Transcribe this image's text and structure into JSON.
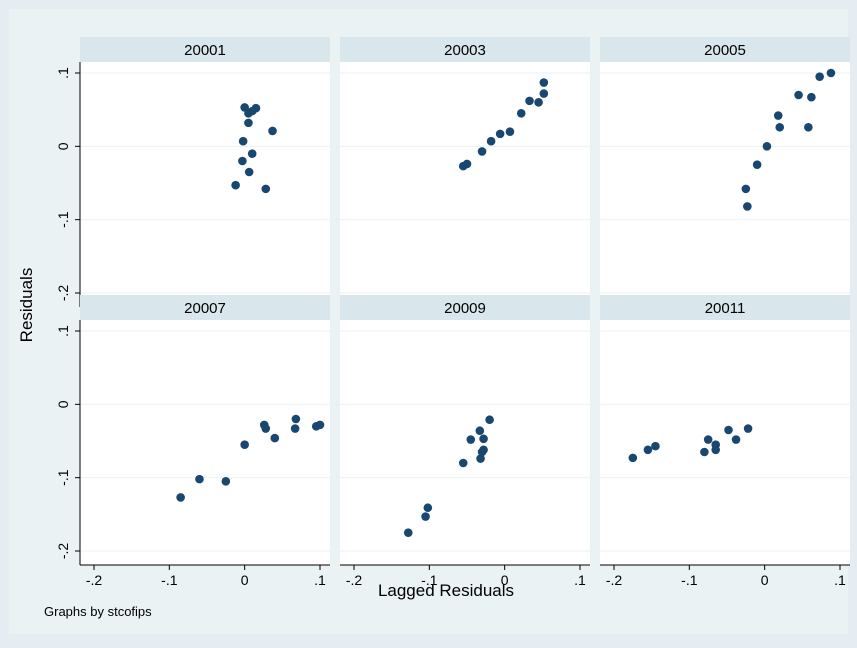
{
  "chart_data": {
    "type": "scatter",
    "title": "",
    "xlabel": "Lagged Residuals",
    "ylabel": "Residuals",
    "note": "Graphs by stcofips",
    "xlim": [
      -0.2,
      0.1
    ],
    "ylim": [
      -0.2,
      0.1
    ],
    "xticks": [
      -0.2,
      -0.1,
      0,
      0.1
    ],
    "xtick_labels": [
      "-.2",
      "-.1",
      "0",
      ".1"
    ],
    "yticks": [
      -0.2,
      -0.1,
      0,
      0.1
    ],
    "ytick_labels": [
      "-.2",
      "-.1",
      "0",
      ".1"
    ],
    "grid": true,
    "marker_color": "#1a476f",
    "panels": [
      {
        "name": "20001",
        "points": [
          [
            0.0,
            0.053
          ],
          [
            0.015,
            0.052
          ],
          [
            0.01,
            0.048
          ],
          [
            0.005,
            0.045
          ],
          [
            0.005,
            0.032
          ],
          [
            0.037,
            0.021
          ],
          [
            -0.002,
            0.007
          ],
          [
            0.01,
            -0.01
          ],
          [
            -0.003,
            -0.02
          ],
          [
            0.006,
            -0.035
          ],
          [
            -0.012,
            -0.053
          ],
          [
            0.028,
            -0.058
          ]
        ]
      },
      {
        "name": "20003",
        "points": [
          [
            0.052,
            0.087
          ],
          [
            0.052,
            0.072
          ],
          [
            0.045,
            0.06
          ],
          [
            0.033,
            0.062
          ],
          [
            0.022,
            0.045
          ],
          [
            0.007,
            0.02
          ],
          [
            -0.006,
            0.017
          ],
          [
            -0.018,
            0.007
          ],
          [
            -0.03,
            -0.007
          ],
          [
            -0.05,
            -0.024
          ],
          [
            -0.055,
            -0.027
          ]
        ]
      },
      {
        "name": "20005",
        "points": [
          [
            0.088,
            0.1
          ],
          [
            0.073,
            0.095
          ],
          [
            0.045,
            0.07
          ],
          [
            0.062,
            0.067
          ],
          [
            0.018,
            0.042
          ],
          [
            0.02,
            0.026
          ],
          [
            0.058,
            0.026
          ],
          [
            0.003,
            0.0
          ],
          [
            -0.01,
            -0.025
          ],
          [
            -0.025,
            -0.058
          ],
          [
            -0.023,
            -0.082
          ]
        ]
      },
      {
        "name": "20007",
        "points": [
          [
            0.068,
            -0.02
          ],
          [
            0.1,
            -0.028
          ],
          [
            0.095,
            -0.03
          ],
          [
            0.026,
            -0.028
          ],
          [
            0.028,
            -0.033
          ],
          [
            0.067,
            -0.033
          ],
          [
            0.04,
            -0.046
          ],
          [
            0.0,
            -0.055
          ],
          [
            -0.06,
            -0.102
          ],
          [
            -0.025,
            -0.105
          ],
          [
            -0.085,
            -0.127
          ]
        ]
      },
      {
        "name": "20009",
        "points": [
          [
            -0.02,
            -0.021
          ],
          [
            -0.033,
            -0.036
          ],
          [
            -0.028,
            -0.047
          ],
          [
            -0.045,
            -0.048
          ],
          [
            -0.028,
            -0.062
          ],
          [
            -0.03,
            -0.065
          ],
          [
            -0.032,
            -0.074
          ],
          [
            -0.055,
            -0.08
          ],
          [
            -0.102,
            -0.141
          ],
          [
            -0.105,
            -0.153
          ],
          [
            -0.128,
            -0.175
          ]
        ]
      },
      {
        "name": "20011",
        "points": [
          [
            -0.022,
            -0.033
          ],
          [
            -0.048,
            -0.035
          ],
          [
            -0.075,
            -0.048
          ],
          [
            -0.038,
            -0.048
          ],
          [
            -0.065,
            -0.055
          ],
          [
            -0.145,
            -0.057
          ],
          [
            -0.155,
            -0.062
          ],
          [
            -0.08,
            -0.065
          ],
          [
            -0.065,
            -0.062
          ],
          [
            -0.175,
            -0.073
          ]
        ]
      }
    ]
  }
}
